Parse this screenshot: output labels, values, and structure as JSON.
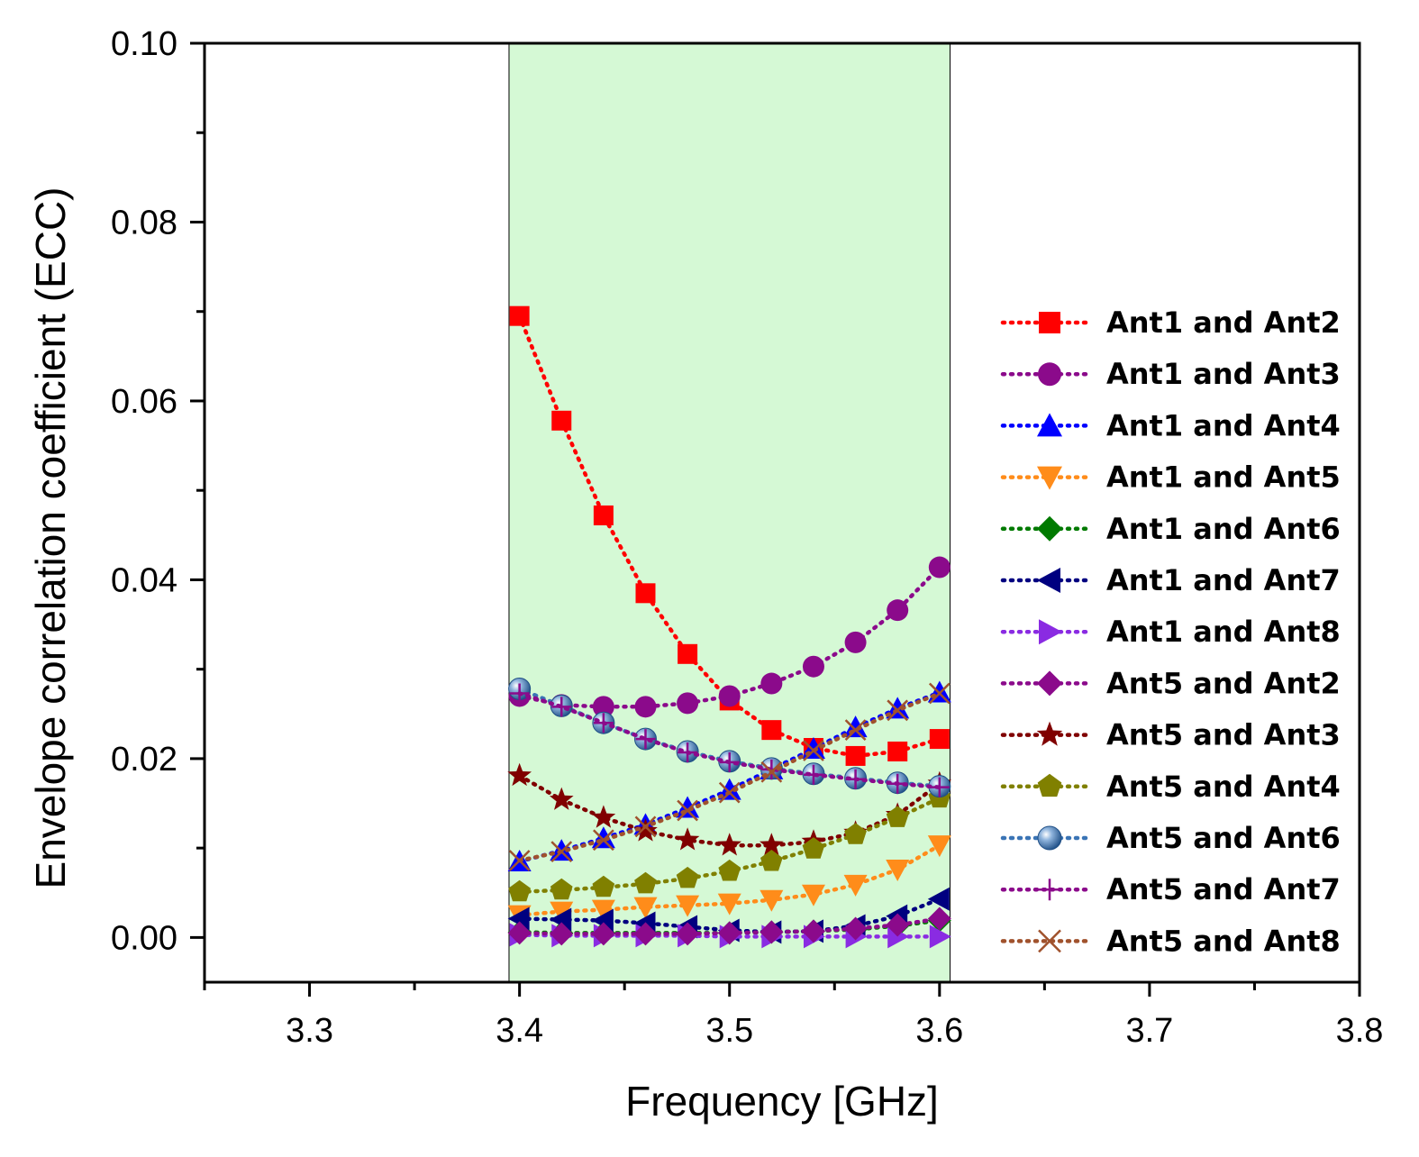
{
  "chart_data": {
    "type": "line",
    "title": "",
    "xlabel": "Frequency [GHz]",
    "ylabel": "Envelope correlation coefficient (ECC)",
    "xlim": [
      3.25,
      3.8
    ],
    "ylim": [
      -0.005,
      0.1
    ],
    "xticks": [
      3.3,
      3.4,
      3.5,
      3.6,
      3.7,
      3.8
    ],
    "xtick_labels": [
      "3.3",
      "3.4",
      "3.5",
      "3.6",
      "3.7",
      "3.8"
    ],
    "yticks": [
      0.0,
      0.02,
      0.04,
      0.06,
      0.08,
      0.1
    ],
    "ytick_labels": [
      "0.00",
      "0.02",
      "0.04",
      "0.06",
      "0.08",
      "0.10"
    ],
    "highlight_band": {
      "x": [
        3.395,
        3.605
      ],
      "color": "#d5f9d5"
    },
    "legend_position": "right",
    "x": [
      3.4,
      3.42,
      3.44,
      3.46,
      3.48,
      3.5,
      3.52,
      3.54,
      3.56,
      3.58,
      3.6
    ],
    "series": [
      {
        "name": "Ant1 and Ant2",
        "color": "#ff0000",
        "marker": "square",
        "values": [
          0.0695,
          0.0578,
          0.0472,
          0.0385,
          0.0317,
          0.0265,
          0.0232,
          0.0212,
          0.0203,
          0.0208,
          0.0222
        ]
      },
      {
        "name": "Ant1 and Ant3",
        "color": "#8b0a8b",
        "marker": "circle",
        "values": [
          0.027,
          0.026,
          0.0258,
          0.0258,
          0.0262,
          0.027,
          0.0284,
          0.0303,
          0.033,
          0.0366,
          0.0414
        ]
      },
      {
        "name": "Ant1 and Ant4",
        "color": "#0000ff",
        "marker": "triangle-up",
        "values": [
          0.0085,
          0.0097,
          0.0111,
          0.0126,
          0.0145,
          0.0165,
          0.0188,
          0.0211,
          0.0235,
          0.0256,
          0.0274
        ]
      },
      {
        "name": "Ant1 and Ant5",
        "color": "#ff8c1a",
        "marker": "triangle-down",
        "values": [
          0.0025,
          0.0029,
          0.0031,
          0.0034,
          0.0036,
          0.0038,
          0.0042,
          0.0048,
          0.0059,
          0.0076,
          0.0103
        ]
      },
      {
        "name": "Ant1 and Ant6",
        "color": "#007a00",
        "marker": "diamond",
        "values": [
          0.0006,
          0.0005,
          0.0005,
          0.0005,
          0.0005,
          0.0005,
          0.0006,
          0.0007,
          0.0009,
          0.0013,
          0.0019
        ]
      },
      {
        "name": "Ant1 and Ant7",
        "color": "#000080",
        "marker": "triangle-left",
        "values": [
          0.0021,
          0.002,
          0.0019,
          0.0016,
          0.0012,
          0.0008,
          0.0006,
          0.0007,
          0.0013,
          0.0024,
          0.0043
        ]
      },
      {
        "name": "Ant1 and Ant8",
        "color": "#8a2be2",
        "marker": "triangle-right",
        "values": [
          0.0003,
          0.0002,
          0.0002,
          0.0002,
          0.0002,
          0.0001,
          0.0001,
          0.0001,
          0.0001,
          0.0001,
          0.0001
        ]
      },
      {
        "name": "Ant5 and Ant2",
        "color": "#8b0a8b",
        "marker": "diamond",
        "values": [
          0.0005,
          0.0004,
          0.0004,
          0.0004,
          0.0004,
          0.0005,
          0.0006,
          0.0007,
          0.001,
          0.0014,
          0.0021
        ]
      },
      {
        "name": "Ant5 and Ant3",
        "color": "#800000",
        "marker": "star",
        "values": [
          0.0181,
          0.0154,
          0.0134,
          0.0119,
          0.0109,
          0.0103,
          0.0103,
          0.0107,
          0.0117,
          0.0137,
          0.0172
        ]
      },
      {
        "name": "Ant5 and Ant4",
        "color": "#808000",
        "marker": "pentagon",
        "values": [
          0.0051,
          0.0053,
          0.0056,
          0.006,
          0.0066,
          0.0074,
          0.0085,
          0.0099,
          0.0115,
          0.0134,
          0.0156
        ]
      },
      {
        "name": "Ant5 and Ant6",
        "color": "#3a74b5",
        "marker": "sphere",
        "values": [
          0.0278,
          0.0259,
          0.024,
          0.0222,
          0.0208,
          0.0197,
          0.0189,
          0.0183,
          0.0178,
          0.0173,
          0.0169
        ]
      },
      {
        "name": "Ant5 and Ant7",
        "color": "#8b0a8b",
        "marker": "plus",
        "values": [
          0.0273,
          0.0258,
          0.024,
          0.0222,
          0.0207,
          0.0196,
          0.0188,
          0.0182,
          0.0177,
          0.0172,
          0.0168
        ]
      },
      {
        "name": "Ant5 and Ant8",
        "color": "#a0522d",
        "marker": "x",
        "values": [
          0.0086,
          0.0096,
          0.0109,
          0.0124,
          0.0142,
          0.0162,
          0.0185,
          0.0209,
          0.0232,
          0.0254,
          0.0273
        ]
      }
    ]
  }
}
